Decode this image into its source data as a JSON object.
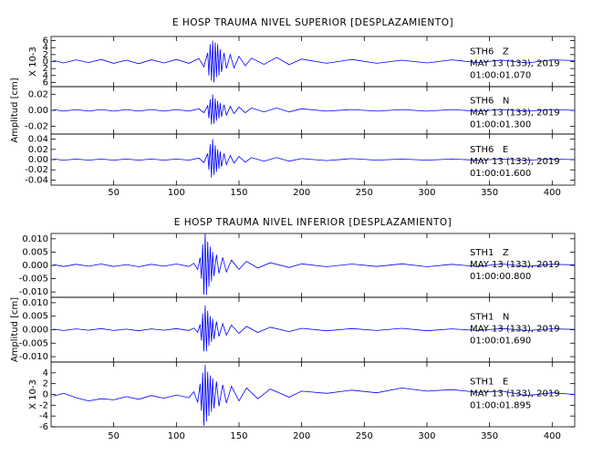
{
  "chart_data": [
    {
      "type": "line",
      "title": "E HOSP TRAUMA NIVEL SUPERIOR [DESPLAZAMIENTO]",
      "ylabel": "Amplitud [cm]",
      "color": "#0000ff",
      "xlim": [
        0,
        418
      ],
      "xticks": [
        50,
        100,
        150,
        200,
        250,
        300,
        350,
        400
      ],
      "x": [
        2,
        10,
        20,
        30,
        40,
        50,
        60,
        70,
        80,
        90,
        100,
        110,
        118,
        122,
        125,
        126,
        127,
        128,
        129,
        130,
        131,
        132,
        133,
        134,
        135,
        136,
        138,
        140,
        143,
        146,
        150,
        155,
        160,
        170,
        180,
        190,
        200,
        220,
        240,
        260,
        280,
        300,
        320,
        340,
        360,
        380,
        400,
        418
      ],
      "traces": [
        {
          "station": "STH6   Z",
          "date": "MAY 13 (133), 2019",
          "time": "01:00:01.070",
          "scale_label": "X 10-3",
          "ylim": [
            -7.2,
            7.2
          ],
          "yticks": [
            6,
            4,
            2,
            0,
            {
              "value": -2,
              "label": "2"
            },
            {
              "value": -4,
              "label": "4"
            },
            {
              "value": -6,
              "label": "6"
            }
          ],
          "values": [
            0.3,
            -0.4,
            0.5,
            -0.3,
            0.6,
            -0.5,
            0.4,
            -0.6,
            0.5,
            -0.4,
            0.6,
            -0.5,
            0.9,
            -1.5,
            2.5,
            -4,
            5,
            -5.5,
            6,
            -6,
            5.5,
            -4.5,
            5,
            -4,
            3.5,
            -3,
            2.5,
            -2,
            2,
            -1.8,
            1.5,
            -1.2,
            1,
            -0.8,
            1.2,
            -0.9,
            0.7,
            -0.5,
            0.6,
            -0.5,
            0.4,
            -0.4,
            0.5,
            -0.3,
            0.4,
            -0.4,
            0.5,
            0.3
          ]
        },
        {
          "station": "STH6   N",
          "date": "MAY 13 (133), 2019",
          "time": "01:00:01.300",
          "ylim": [
            -0.03,
            0.03
          ],
          "yticks": [
            0.02,
            {
              "value": 0,
              "label": "0.00"
            },
            -0.02
          ],
          "values": [
            0.001,
            -0.001,
            0.001,
            -0.001,
            0.001,
            -0.001,
            0.001,
            -0.001,
            0.001,
            -0.001,
            0.001,
            -0.001,
            0.002,
            -0.003,
            0.006,
            -0.01,
            0.014,
            -0.018,
            0.02,
            -0.017,
            0.015,
            -0.013,
            0.012,
            -0.01,
            0.009,
            -0.008,
            0.007,
            -0.006,
            0.005,
            -0.004,
            0.004,
            -0.003,
            0.003,
            -0.002,
            0.003,
            -0.002,
            0.002,
            -0.001,
            0.001,
            -0.001,
            0.001,
            -0.001,
            0.001,
            -0.001,
            0.001,
            -0.001,
            0.001,
            0
          ]
        },
        {
          "station": "STH6   E",
          "date": "MAY 13 (133), 2019",
          "time": "01:00:01.600",
          "ylim": [
            -0.05,
            0.05
          ],
          "yticks": [
            0.04,
            0.02,
            {
              "value": 0,
              "label": "0.00"
            },
            -0.02,
            -0.04
          ],
          "values": [
            0.001,
            -0.001,
            0.001,
            -0.001,
            0.001,
            -0.001,
            0.001,
            -0.001,
            0.001,
            -0.001,
            0.001,
            -0.001,
            0.003,
            -0.006,
            0.012,
            -0.02,
            0.03,
            -0.035,
            0.04,
            -0.03,
            0.028,
            -0.024,
            0.02,
            -0.018,
            0.016,
            -0.014,
            0.012,
            -0.01,
            0.008,
            -0.007,
            0.006,
            -0.005,
            0.004,
            -0.003,
            0.004,
            -0.003,
            0.002,
            -0.002,
            0.002,
            -0.001,
            0.001,
            -0.001,
            0.001,
            -0.001,
            0.001,
            -0.001,
            0.001,
            0
          ]
        }
      ]
    },
    {
      "type": "line",
      "title": "E HOSP TRAUMA NIVEL INFERIOR [DESPLAZAMIENTO]",
      "ylabel": "Amplitud [cm]",
      "color": "#0000ff",
      "xlim": [
        0,
        418
      ],
      "xticks": [
        50,
        100,
        150,
        200,
        250,
        300,
        350,
        400
      ],
      "x": [
        2,
        10,
        20,
        30,
        40,
        50,
        60,
        70,
        80,
        90,
        100,
        110,
        114,
        117,
        119,
        120,
        121,
        122,
        123,
        124,
        125,
        126,
        127,
        128,
        129,
        130,
        132,
        134,
        137,
        140,
        144,
        150,
        156,
        165,
        175,
        190,
        200,
        220,
        240,
        260,
        280,
        300,
        320,
        340,
        360,
        380,
        400,
        418
      ],
      "traces": [
        {
          "station": "STH1   Z",
          "date": "MAY 13 (133), 2019",
          "time": "01:00:00.800",
          "ylim": [
            -0.012,
            0.012
          ],
          "yticks": [
            {
              "value": 0.01,
              "label": "0.010"
            },
            0.005,
            {
              "value": 0,
              "label": "0.000"
            },
            -0.005,
            {
              "value": -0.01,
              "label": "-0.010"
            }
          ],
          "values": [
            0.0003,
            -0.0004,
            0.0004,
            -0.0003,
            0.0005,
            -0.0004,
            0.0003,
            -0.0005,
            0.0004,
            -0.0003,
            0.0005,
            -0.0004,
            0.0008,
            -0.0015,
            0.003,
            -0.005,
            0.008,
            -0.011,
            0.012,
            -0.011,
            0.009,
            -0.008,
            0.007,
            -0.006,
            0.005,
            -0.004,
            0.004,
            -0.003,
            0.003,
            -0.0025,
            0.002,
            -0.0015,
            0.0015,
            -0.001,
            0.001,
            -0.0008,
            0.0006,
            -0.0005,
            0.0005,
            -0.0004,
            0.0006,
            -0.0005,
            0.0004,
            -0.0004,
            0.0005,
            -0.0004,
            0.0004,
            0.0002
          ]
        },
        {
          "station": "STH1   N",
          "date": "MAY 13 (133), 2019",
          "time": "01:00:01.690",
          "ylim": [
            -0.012,
            0.012
          ],
          "yticks": [
            {
              "value": 0.01,
              "label": "0.010"
            },
            0.005,
            {
              "value": 0,
              "label": "0.000"
            },
            -0.005,
            {
              "value": -0.01,
              "label": "-0.010"
            }
          ],
          "values": [
            0.0002,
            -0.0003,
            0.0003,
            -0.0002,
            0.0004,
            -0.0003,
            0.0002,
            -0.0004,
            0.0003,
            -0.0002,
            0.0004,
            -0.0003,
            0.0006,
            -0.001,
            0.002,
            -0.004,
            0.006,
            -0.008,
            0.009,
            -0.008,
            0.007,
            -0.006,
            0.005,
            -0.0045,
            0.004,
            -0.0035,
            0.003,
            -0.0025,
            0.0022,
            -0.002,
            0.0017,
            -0.0014,
            0.0012,
            -0.001,
            0.0009,
            -0.0007,
            0.0005,
            -0.0004,
            0.0004,
            -0.0003,
            0.0005,
            -0.0004,
            0.0003,
            -0.0003,
            0.0004,
            -0.0003,
            0.0003,
            0.0001
          ]
        },
        {
          "station": "STH1   E",
          "date": "MAY 13 (133), 2019",
          "time": "01:00:01.895",
          "scale_label": "X 10-3",
          "ylim": [
            -6,
            6
          ],
          "yticks": [
            4,
            2,
            0,
            -2,
            -4,
            -6
          ],
          "values": [
            -0.3,
            0.2,
            -0.6,
            -1.2,
            -0.8,
            -1,
            -0.4,
            -0.9,
            -0.2,
            -0.7,
            -0.1,
            -0.6,
            0.5,
            -1.5,
            2,
            -3,
            4,
            -5.8,
            5.5,
            -5,
            4.2,
            -4,
            3.5,
            -3.2,
            3,
            -2.6,
            2.4,
            -2.2,
            1.8,
            -1.6,
            1.5,
            -1.2,
            1.2,
            -0.8,
            1,
            -0.5,
            0.6,
            0.2,
            0.8,
            0.3,
            1.2,
            0.6,
            0.9,
            0.4,
            0.6,
            -0.2,
            0.3,
            0
          ]
        }
      ]
    }
  ]
}
